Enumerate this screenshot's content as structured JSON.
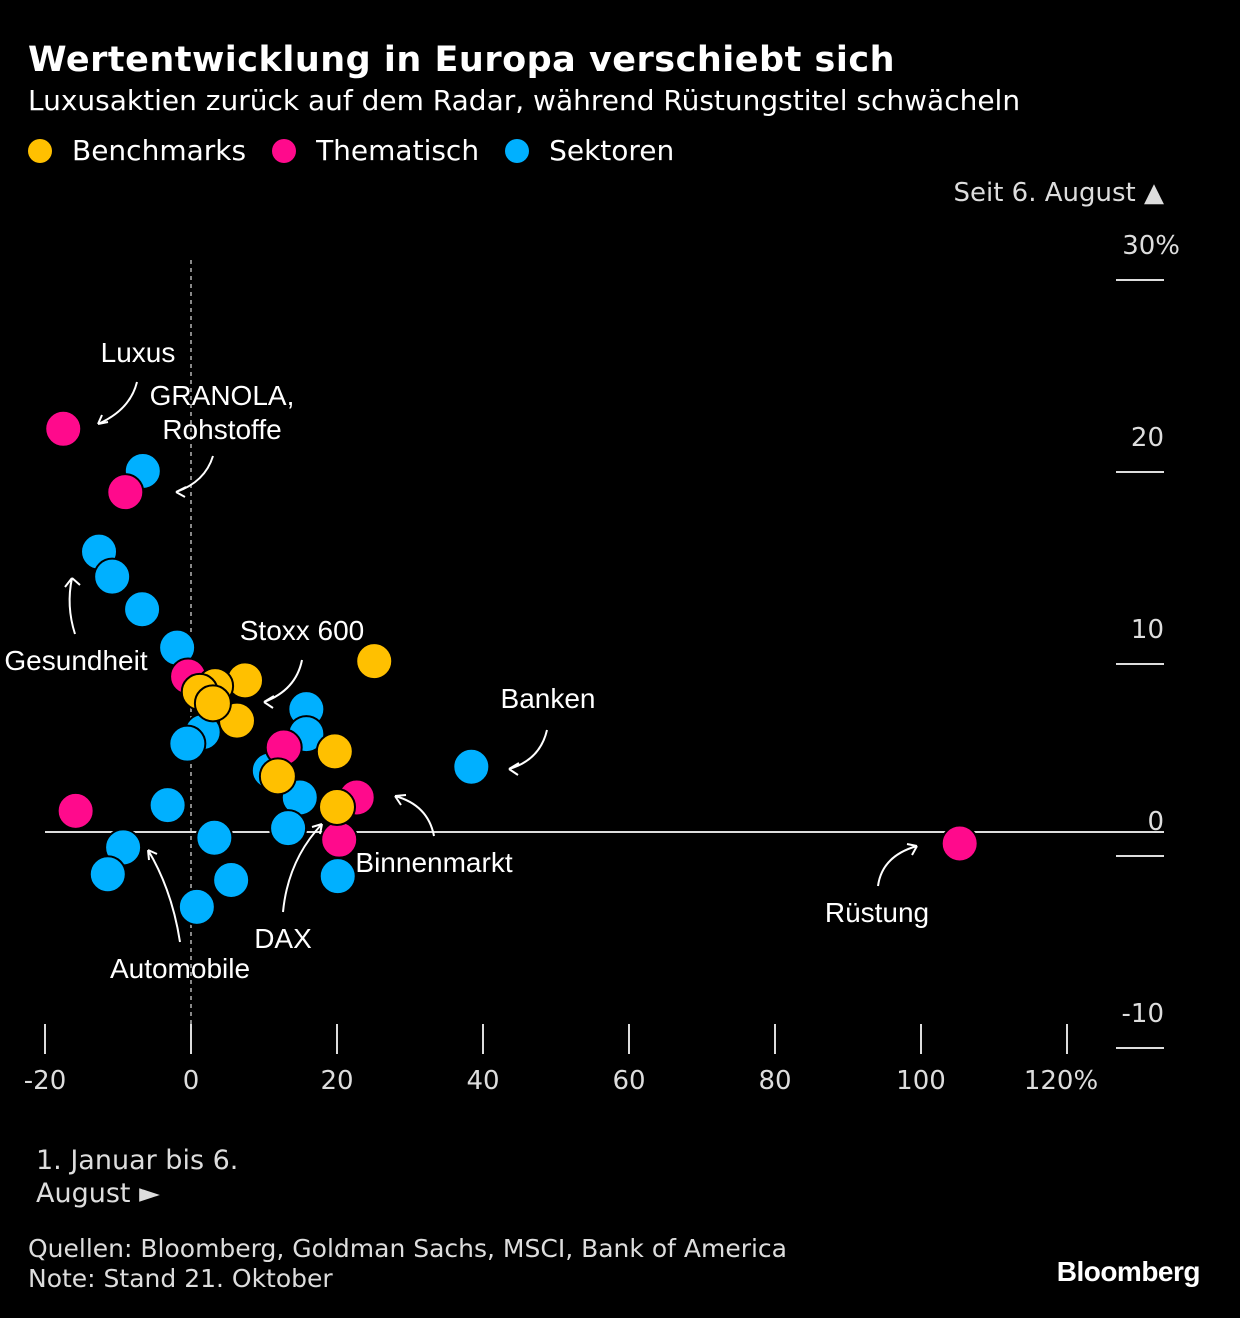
{
  "title": "Wertentwicklung in Europa verschiebt sich",
  "subtitle": "Luxusaktien zurück auf dem Radar, während Rüstungstitel schwächeln",
  "legend": [
    {
      "label": "Benchmarks",
      "color": "#FFC000"
    },
    {
      "label": "Thematisch",
      "color": "#FF0A8C"
    },
    {
      "label": "Sektoren",
      "color": "#00B0FF"
    }
  ],
  "x_note": "1. Januar bis 6. August ►",
  "footer": {
    "sources": "Quellen: Bloomberg, Goldman Sachs, MSCI, Bank of America",
    "note": "Note: Stand 21. Oktober"
  },
  "logo": "Bloomberg",
  "chart_data": {
    "type": "scatter",
    "title": "Wertentwicklung in Europa verschiebt sich",
    "xlabel": "1. Januar bis 6. August ►",
    "ylabel": "Seit 6. August ▲",
    "xlim": [
      -20,
      125
    ],
    "ylim": [
      -10,
      30
    ],
    "x_ticks": [
      "-20",
      "0",
      "20",
      "40",
      "60",
      "80",
      "100",
      "120%"
    ],
    "x_tick_values": [
      -20,
      0,
      20,
      40,
      60,
      80,
      100,
      120
    ],
    "y_ticks": [
      "30%",
      "20",
      "10",
      "0",
      "-10"
    ],
    "y_tick_values": [
      30,
      20,
      10,
      0,
      -10
    ],
    "legend_position": "top-left",
    "series": [
      {
        "name": "Sektoren",
        "color": "#00B0FF",
        "points": [
          [
            -6.6,
            18.8
          ],
          [
            -12.6,
            14.6
          ],
          [
            -10.8,
            13.3
          ],
          [
            -6.7,
            11.6
          ],
          [
            -1.9,
            9.6
          ],
          [
            1.6,
            5.2
          ],
          [
            -0.5,
            4.6
          ],
          [
            -3.2,
            1.4
          ],
          [
            -9.3,
            -0.8
          ],
          [
            -11.4,
            -2.2
          ],
          [
            0.8,
            -3.9
          ],
          [
            3.2,
            -0.3
          ],
          [
            5.5,
            -2.5
          ],
          [
            15.8,
            6.4
          ],
          [
            15.8,
            5.1
          ],
          [
            10.8,
            3.2
          ],
          [
            14.9,
            1.8
          ],
          [
            13.3,
            0.2
          ],
          [
            20.1,
            -2.3
          ],
          [
            38.4,
            3.4
          ]
        ]
      },
      {
        "name": "Thematisch",
        "color": "#FF0A8C",
        "points": [
          [
            -17.5,
            21.0
          ],
          [
            -9.0,
            17.7
          ],
          [
            -0.4,
            8.1
          ],
          [
            -15.8,
            1.1
          ],
          [
            12.7,
            4.4
          ],
          [
            22.7,
            1.8
          ],
          [
            20.3,
            -0.4
          ],
          [
            105.3,
            -0.6
          ]
        ]
      },
      {
        "name": "Benchmarks",
        "color": "#FFC000",
        "points": [
          [
            25.1,
            8.9
          ],
          [
            7.4,
            7.9
          ],
          [
            3.3,
            7.6
          ],
          [
            1.2,
            7.3
          ],
          [
            6.3,
            5.8
          ],
          [
            3.0,
            6.7
          ],
          [
            19.7,
            4.2
          ],
          [
            11.9,
            2.9
          ],
          [
            20.0,
            1.3
          ]
        ]
      }
    ],
    "annotations": [
      {
        "text": "Luxus"
      },
      {
        "text": "GRANOLA,"
      },
      {
        "text": "Rohstoffe"
      },
      {
        "text": "Gesundheit"
      },
      {
        "text": "Stoxx 600"
      },
      {
        "text": "Banken"
      },
      {
        "text": "Binnenmarkt"
      },
      {
        "text": "Rüstung"
      },
      {
        "text": "DAX"
      },
      {
        "text": "Automobile"
      }
    ]
  }
}
